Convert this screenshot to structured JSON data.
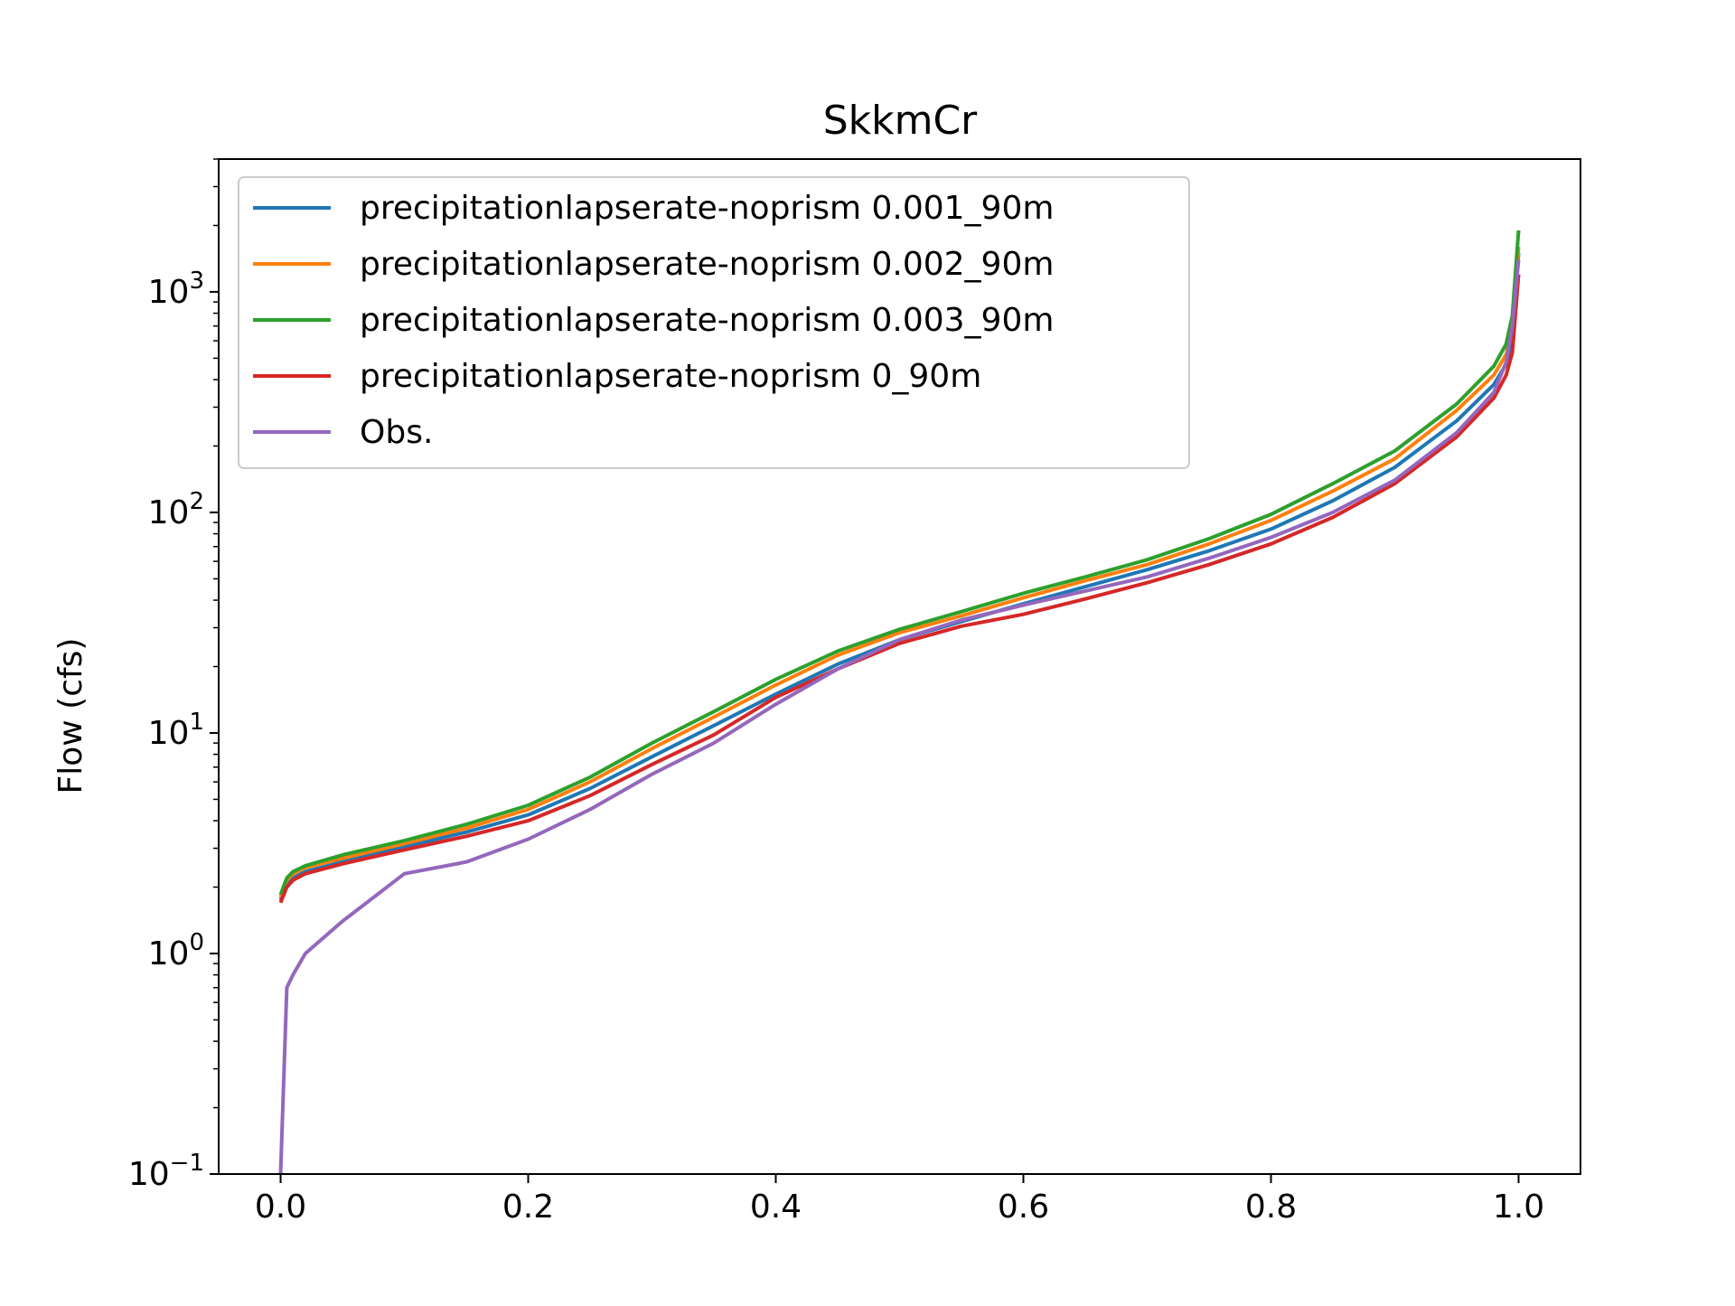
{
  "chart_data": {
    "type": "line",
    "title": "SkkmCr",
    "xlabel": "",
    "ylabel": "Flow (cfs)",
    "yscale": "log",
    "xlim": [
      -0.05,
      1.05
    ],
    "ylim": [
      0.1,
      4000
    ],
    "grid": false,
    "legend_position": "upper-left",
    "x_ticks": [
      "0.0",
      "0.2",
      "0.4",
      "0.6",
      "0.8",
      "1.0"
    ],
    "y_ticks": [
      {
        "base": "10",
        "exp": "−1",
        "value": 0.1
      },
      {
        "base": "10",
        "exp": "0",
        "value": 1
      },
      {
        "base": "10",
        "exp": "1",
        "value": 10
      },
      {
        "base": "10",
        "exp": "2",
        "value": 100
      },
      {
        "base": "10",
        "exp": "3",
        "value": 1000
      }
    ],
    "x": [
      0.0,
      0.005,
      0.01,
      0.02,
      0.05,
      0.1,
      0.15,
      0.2,
      0.25,
      0.3,
      0.35,
      0.4,
      0.45,
      0.5,
      0.55,
      0.6,
      0.65,
      0.7,
      0.75,
      0.8,
      0.85,
      0.9,
      0.95,
      0.98,
      0.99,
      0.995,
      1.0
    ],
    "series": [
      {
        "name": "precipitationlapserate-noprism 0.001_90m",
        "color": "#1f77b4",
        "values": [
          1.75,
          2.05,
          2.2,
          2.35,
          2.6,
          3.05,
          3.55,
          4.25,
          5.6,
          7.8,
          10.8,
          15.0,
          20.5,
          26.5,
          32.0,
          38.5,
          46.0,
          55.0,
          67.0,
          84.0,
          113.0,
          160.0,
          260.0,
          380.0,
          470.0,
          620.0,
          1500.0
        ]
      },
      {
        "name": "precipitationlapserate-noprism 0.002_90m",
        "color": "#ff7f0e",
        "values": [
          1.8,
          2.15,
          2.3,
          2.45,
          2.7,
          3.15,
          3.7,
          4.5,
          6.0,
          8.5,
          11.8,
          16.5,
          22.5,
          28.5,
          34.0,
          41.0,
          49.0,
          58.0,
          72.0,
          92.0,
          125.0,
          175.0,
          290.0,
          420.0,
          520.0,
          700.0,
          1600.0
        ]
      },
      {
        "name": "precipitationlapserate-noprism 0.003_90m",
        "color": "#2ca02c",
        "values": [
          1.85,
          2.2,
          2.35,
          2.5,
          2.8,
          3.25,
          3.85,
          4.7,
          6.3,
          9.0,
          12.5,
          17.5,
          23.5,
          29.5,
          35.5,
          43.0,
          51.0,
          61.0,
          76.0,
          98.0,
          135.0,
          190.0,
          310.0,
          460.0,
          580.0,
          780.0,
          1900.0
        ]
      },
      {
        "name": "precipitationlapserate-noprism 0_90m",
        "color": "#d62728",
        "values": [
          1.7,
          2.0,
          2.15,
          2.3,
          2.55,
          2.95,
          3.4,
          4.0,
          5.2,
          7.2,
          9.8,
          14.5,
          19.5,
          25.5,
          30.5,
          34.5,
          40.5,
          48.0,
          58.0,
          72.0,
          95.0,
          135.0,
          220.0,
          330.0,
          420.0,
          530.0,
          1200.0
        ]
      },
      {
        "name": "Obs.",
        "color": "#9467bd",
        "values": [
          0.1,
          0.7,
          0.8,
          1.0,
          1.4,
          2.3,
          2.6,
          3.3,
          4.5,
          6.5,
          9.0,
          13.5,
          19.5,
          26.5,
          32.5,
          38.0,
          44.0,
          51.0,
          62.0,
          77.0,
          100.0,
          140.0,
          230.0,
          350.0,
          480.0,
          700.0,
          1400.0
        ]
      }
    ]
  }
}
